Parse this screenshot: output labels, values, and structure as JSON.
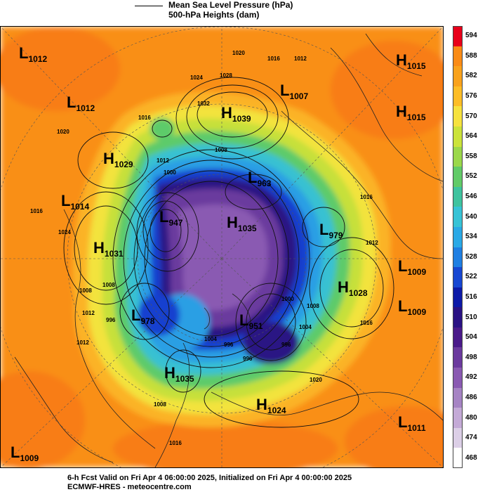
{
  "header": {
    "legend_line_1": "Mean Sea Level Pressure (hPa)",
    "legend_line_2": "500-hPa Heights (dam)"
  },
  "colorbar": {
    "labels": [
      "594",
      "588",
      "582",
      "576",
      "570",
      "564",
      "558",
      "552",
      "546",
      "540",
      "534",
      "528",
      "522",
      "516",
      "510",
      "504",
      "498",
      "492",
      "486",
      "480",
      "474",
      "468"
    ],
    "colors": [
      "#e8001a",
      "#fa8b16",
      "#f9a21c",
      "#fdbd26",
      "#f6e23e",
      "#cbe33a",
      "#9bd84a",
      "#62cb68",
      "#3fc39f",
      "#37c3d6",
      "#2aa9e6",
      "#1f7fe2",
      "#1747d2",
      "#0d1aa8",
      "#2a1284",
      "#4a1a8a",
      "#6b3a9e",
      "#8a5ab2",
      "#a684c4",
      "#c4aad7",
      "#dccfe7",
      "#ffffff"
    ]
  },
  "centers": [
    {
      "type": "L",
      "value": "1012",
      "name": "low-1012-nw"
    },
    {
      "type": "L",
      "value": "1012",
      "name": "low-1012-w"
    },
    {
      "type": "H",
      "value": "1039",
      "name": "high-1039"
    },
    {
      "type": "L",
      "value": "1007",
      "name": "low-1007"
    },
    {
      "type": "H",
      "value": "1015",
      "name": "high-1015-ne1"
    },
    {
      "type": "H",
      "value": "1015",
      "name": "high-1015-ne2"
    },
    {
      "type": "H",
      "value": "1029",
      "name": "high-1029"
    },
    {
      "type": "L",
      "value": "963",
      "name": "low-963"
    },
    {
      "type": "L",
      "value": "1014",
      "name": "low-1014"
    },
    {
      "type": "L",
      "value": "947",
      "name": "low-947"
    },
    {
      "type": "H",
      "value": "1035",
      "name": "high-1035-center"
    },
    {
      "type": "L",
      "value": "979",
      "name": "low-979"
    },
    {
      "type": "H",
      "value": "1031",
      "name": "high-1031"
    },
    {
      "type": "L",
      "value": "1009",
      "name": "low-1009-e1"
    },
    {
      "type": "H",
      "value": "1028",
      "name": "high-1028"
    },
    {
      "type": "L",
      "value": "1009",
      "name": "low-1009-e2"
    },
    {
      "type": "L",
      "value": "978",
      "name": "low-978"
    },
    {
      "type": "L",
      "value": "951",
      "name": "low-951"
    },
    {
      "type": "H",
      "value": "1035",
      "name": "high-1035-south"
    },
    {
      "type": "H",
      "value": "1024",
      "name": "high-1024"
    },
    {
      "type": "L",
      "value": "1011",
      "name": "low-1011"
    },
    {
      "type": "L",
      "value": "1009",
      "name": "low-1009-sw"
    }
  ],
  "isobar_labels": [
    "1020",
    "1028",
    "1024",
    "1032",
    "1016",
    "1012",
    "1016",
    "1020",
    "1016",
    "1012",
    "1008",
    "1000",
    "1016",
    "1024",
    "1008",
    "1012",
    "996",
    "1000",
    "1004",
    "1008",
    "1004",
    "996",
    "1012",
    "996",
    "1016",
    "1012",
    "1008",
    "996",
    "1020",
    "1016",
    "1008"
  ],
  "footer": {
    "line_1": "6-h Fcst Valid on Fri Apr  4 06:00:00 2025, Initialized on Fri Apr  4 00:00:00 2025",
    "line_2": "ECMWF-HRES  - meteocentre.com"
  }
}
